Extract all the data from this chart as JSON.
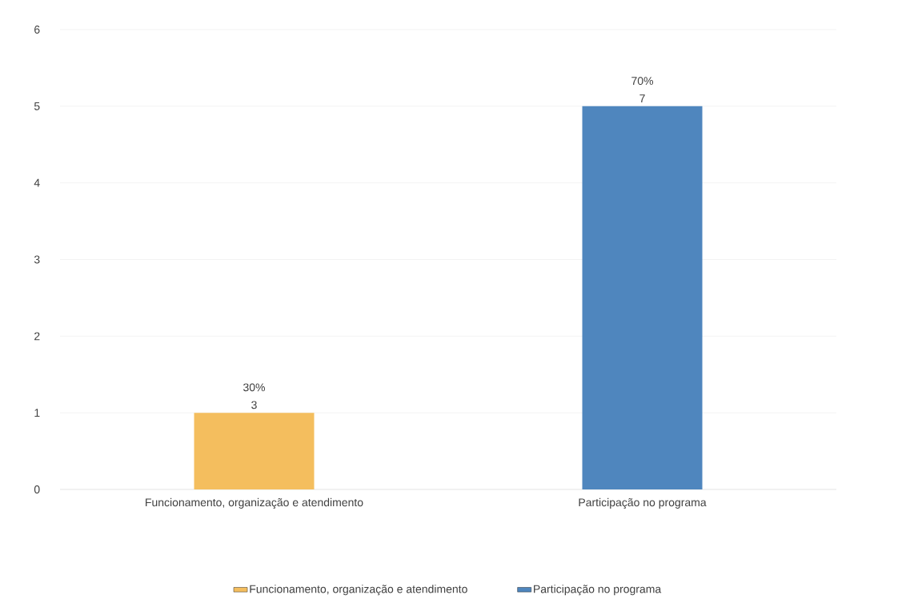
{
  "chart_data": {
    "type": "bar",
    "categories": [
      "Funcionamento, organização e atendimento",
      "Participação no programa"
    ],
    "series": [
      {
        "name": "Funcionamento, organização e atendimento",
        "color": "#f4be5e",
        "values": [
          1,
          null
        ]
      },
      {
        "name": "Participação no programa",
        "color": "#4f86be",
        "values": [
          null,
          5
        ]
      }
    ],
    "annotations": [
      {
        "text": "30% 3",
        "x": "Funcionamento, organização e atendimento",
        "y": 1
      },
      {
        "text": "70% 7",
        "x": "Participação no programa",
        "y": 5
      }
    ],
    "ylim": [
      0,
      6
    ],
    "yticks": [
      0,
      1,
      2,
      3,
      4,
      5,
      6
    ],
    "grid": "y",
    "legend": "bottom"
  }
}
